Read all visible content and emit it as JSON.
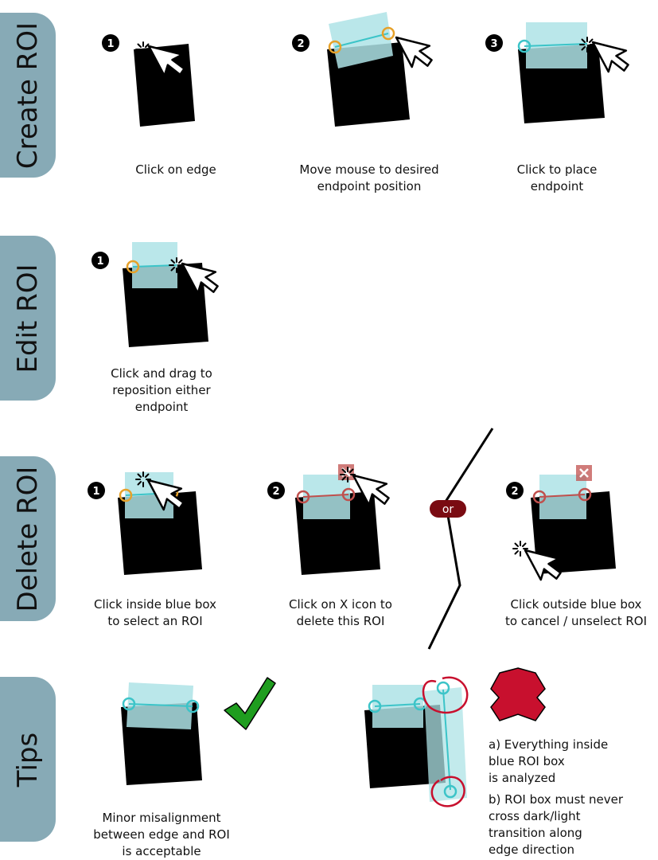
{
  "sections": {
    "create": "Create ROI",
    "edit": "Edit ROI",
    "delete": "Delete ROI",
    "tips": "Tips"
  },
  "steps": {
    "create_1": "1",
    "create_2": "2",
    "create_3": "3",
    "edit_1": "1",
    "delete_1": "1",
    "delete_2a": "2",
    "delete_2b": "2"
  },
  "captions": {
    "create_1": "Click on edge",
    "create_2": "Move mouse to desired\nendpoint position",
    "create_3": "Click to place\nendpoint",
    "edit_1": "Click and drag to\nreposition either\nendpoint",
    "delete_1": "Click inside blue box\nto select an ROI",
    "delete_2a": "Click on X icon to\ndelete this ROI",
    "delete_2b": "Click outside blue box\nto cancel / unselect ROI",
    "tips_good": "Minor misalignment\nbetween edge and ROI\nis acceptable"
  },
  "or_label": "or",
  "tips_notes": {
    "a": "a) Everything inside\n  blue ROI box\n  is analyzed",
    "b": "b) ROI box must never\n  cross dark/light\n  transition along\n  edge direction"
  },
  "colors": {
    "tab": "#87aab6",
    "roi_box": "#aee3e6",
    "roi_line": "#3cc4c8",
    "handle_orange": "#e6a12a",
    "handle_teal": "#3cc4c8",
    "handle_red": "#c0504d",
    "delete_icon": "#c0504d",
    "or_badge": "#7a0b12",
    "check": "#1f9d1f",
    "cross": "#c8102e"
  }
}
